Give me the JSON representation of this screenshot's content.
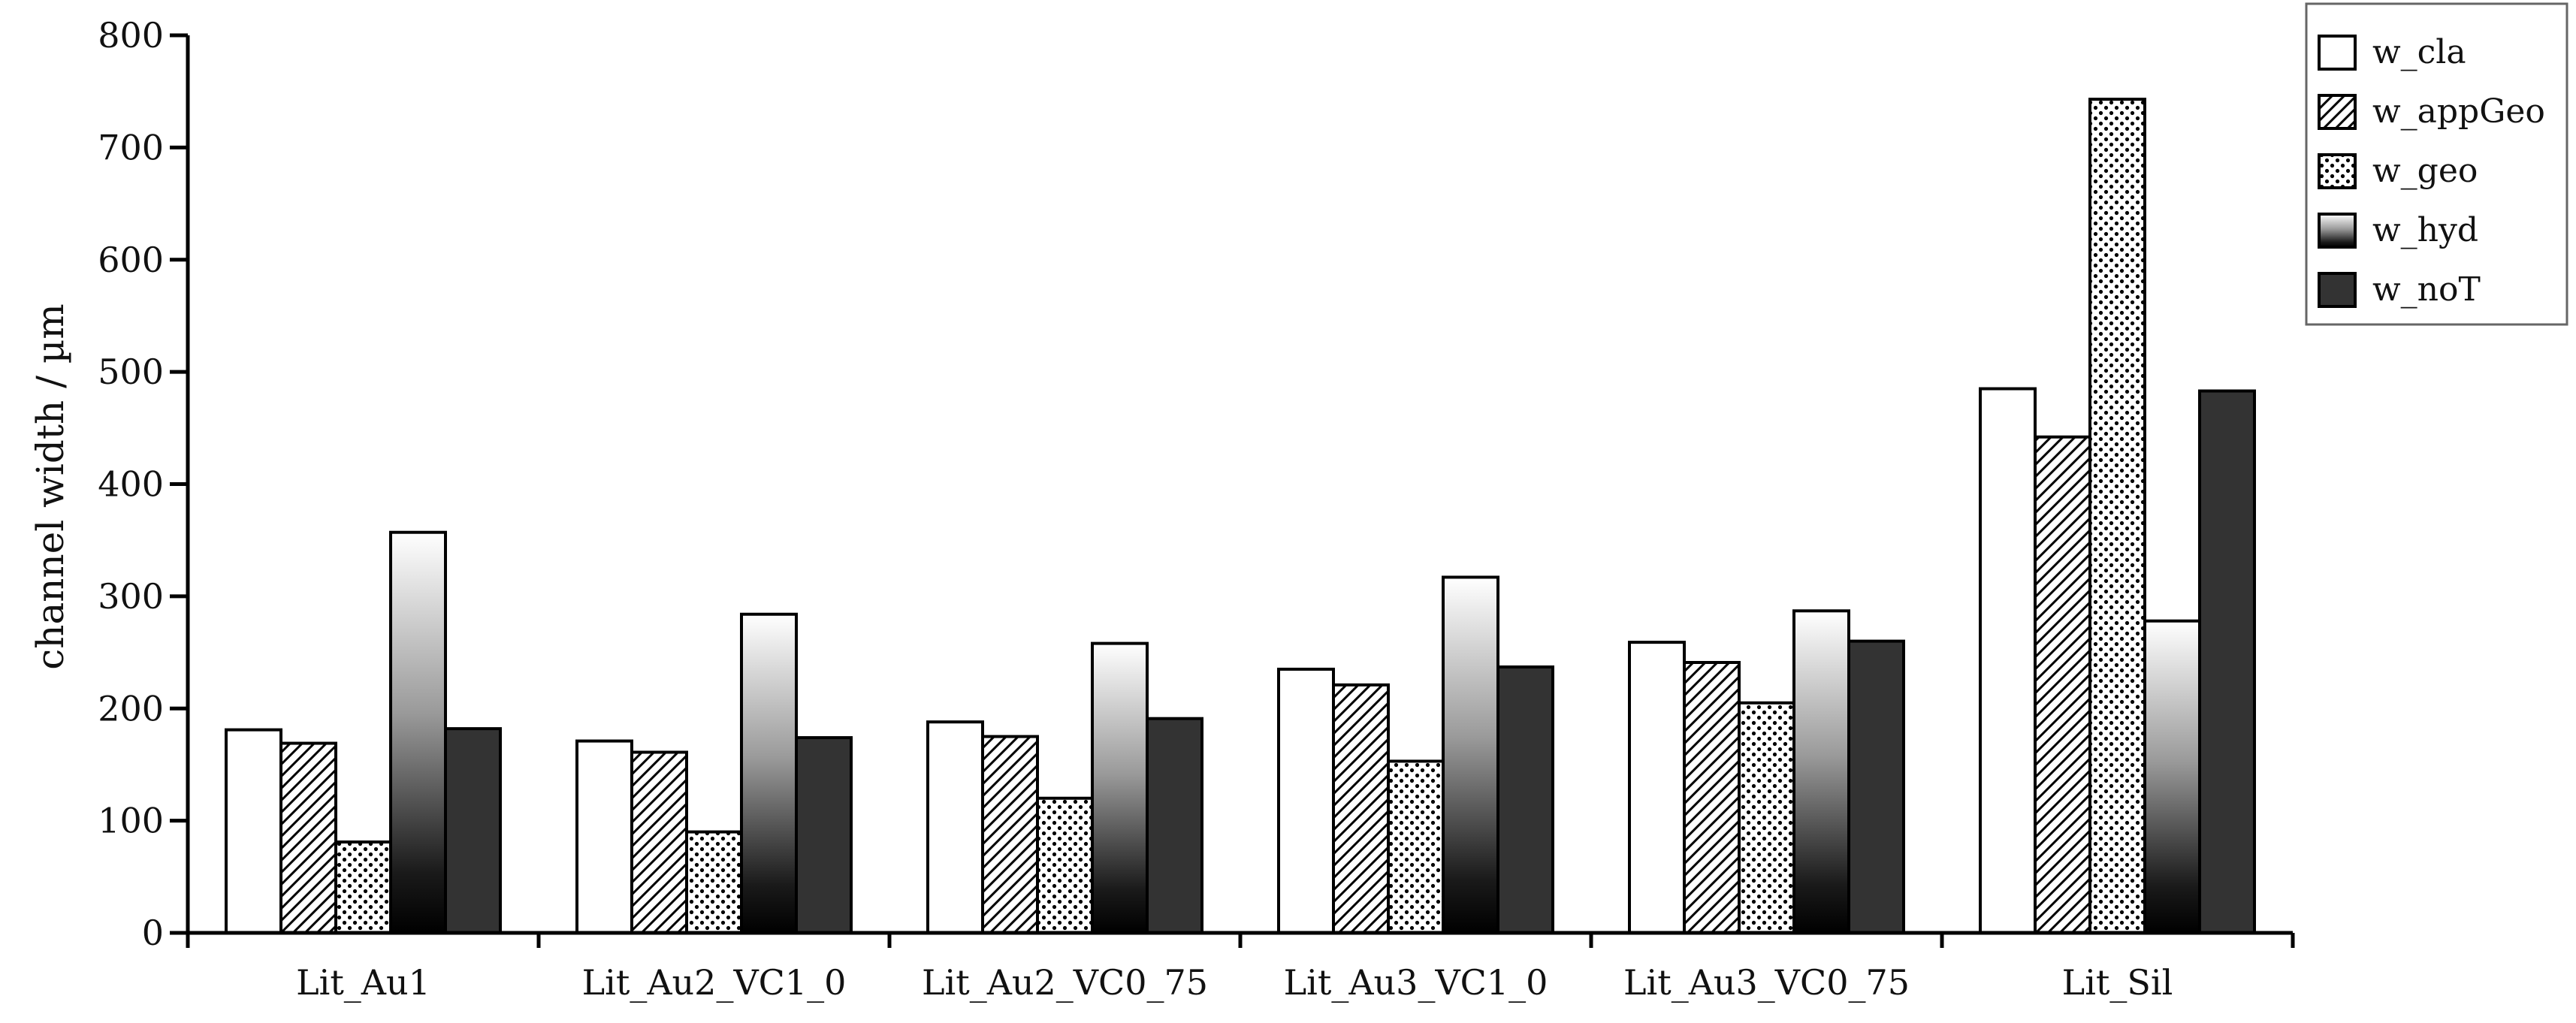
{
  "chart_data": {
    "type": "bar",
    "ylabel": "channel width / µm",
    "xlabel": "",
    "ylim": [
      0,
      800
    ],
    "yticks": [
      0,
      100,
      200,
      300,
      400,
      500,
      600,
      700,
      800
    ],
    "categories": [
      "Lit_Au1",
      "Lit_Au2_VC1_0",
      "Lit_Au2_VC0_75",
      "Lit_Au3_VC1_0",
      "Lit_Au3_VC0_75",
      "Lit_Sil"
    ],
    "series": [
      {
        "name": "w_cla",
        "pattern": "white",
        "values": [
          181,
          171,
          188,
          235,
          259,
          485
        ]
      },
      {
        "name": "w_appGeo",
        "pattern": "hatch",
        "values": [
          169,
          161,
          175,
          221,
          241,
          442
        ]
      },
      {
        "name": "w_geo",
        "pattern": "dots",
        "values": [
          81,
          90,
          120,
          153,
          205,
          743
        ]
      },
      {
        "name": "w_hyd",
        "pattern": "gradient",
        "values": [
          357,
          284,
          258,
          317,
          287,
          278
        ]
      },
      {
        "name": "w_noT",
        "pattern": "dark",
        "values": [
          182,
          174,
          191,
          237,
          260,
          483
        ]
      }
    ],
    "legend_position": "top-right",
    "grid": false,
    "colors": {
      "dark": "#333333",
      "white": "#ffffff",
      "stroke": "#000000"
    }
  }
}
